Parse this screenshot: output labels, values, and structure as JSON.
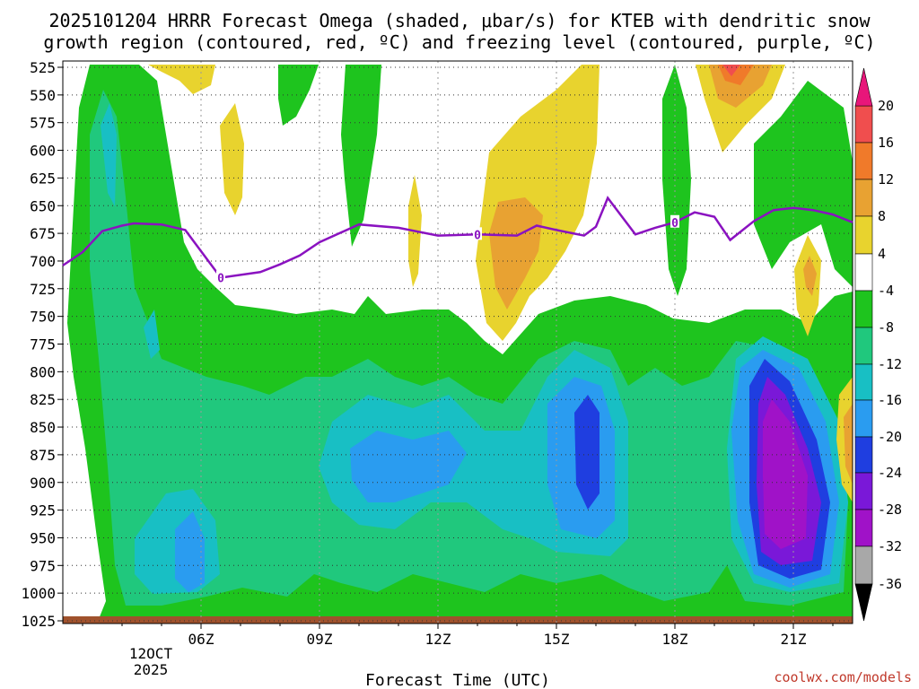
{
  "chart_data": {
    "type": "contour",
    "title_line1": "2025101204 HRRR Forecast Omega (shaded, μbar/s) for KTEB with dendritic snow",
    "title_line2": "growth region (contoured, red, ºC) and freezing level (contoured, purple, ºC)",
    "xlabel": "Forecast Time (UTC)",
    "credit": "coolwx.com/models",
    "date_label_line1": "12OCT",
    "date_label_line2": "2025",
    "x_range_hours": [
      2.5,
      22.5
    ],
    "x_ticks": [
      {
        "hour": 6,
        "label": "06Z"
      },
      {
        "hour": 9,
        "label": "09Z"
      },
      {
        "hour": 12,
        "label": "12Z"
      },
      {
        "hour": 15,
        "label": "15Z"
      },
      {
        "hour": 18,
        "label": "18Z"
      },
      {
        "hour": 21,
        "label": "21Z"
      }
    ],
    "y_range_hpa": [
      1025,
      525
    ],
    "y_ticks": [
      "525",
      "550",
      "575",
      "600",
      "625",
      "650",
      "675",
      "700",
      "725",
      "750",
      "775",
      "800",
      "825",
      "850",
      "875",
      "900",
      "925",
      "950",
      "975",
      "1000",
      "1025"
    ],
    "colorbar_labels": [
      "20",
      "16",
      "12",
      "8",
      "4",
      "-4",
      "-8",
      "-12",
      "-16",
      "-20",
      "-24",
      "-28",
      "-32",
      "-36"
    ],
    "colors": {
      "ge20": "#e8167a",
      "16to20": "#f04e4e",
      "12to16": "#f07a2a",
      "8to12": "#e8a232",
      "4to8": "#e8d32e",
      "m4to4": "#ffffff",
      "m8tom4": "#1ec41e",
      "m12tom8": "#20c87d",
      "m16tom12": "#18bfc4",
      "m20tom16": "#2a9cf0",
      "m24tom20": "#1f3ee0",
      "m28tom24": "#7a18d8",
      "m32tom28": "#a012c8",
      "m36tom32": "#a8a8a8",
      "lem36": "#000000",
      "ground": "#a0522d",
      "freezing": "#8a12c0"
    },
    "freezing_level_label": "0",
    "freezing_level": {
      "hours": [
        2.5,
        3.0,
        3.5,
        4.0,
        4.3,
        5.0,
        5.6,
        6.5,
        7.5,
        8.0,
        8.5,
        9.0,
        10.0,
        11.0,
        12.0,
        13.0,
        14.0,
        14.5,
        15.0,
        15.7,
        16.0,
        16.3,
        17.0,
        17.5,
        18.0,
        18.5,
        19.0,
        19.4,
        20.0,
        20.5,
        21.0,
        21.5,
        22.0,
        22.5
      ],
      "pressure": [
        704,
        692,
        673,
        668,
        666,
        667,
        672,
        715,
        710,
        703,
        695,
        683,
        667,
        670,
        677,
        676,
        677,
        668,
        672,
        677,
        669,
        643,
        676,
        670,
        665,
        656,
        660,
        681,
        664,
        654,
        652,
        654,
        658,
        665
      ]
    }
  }
}
